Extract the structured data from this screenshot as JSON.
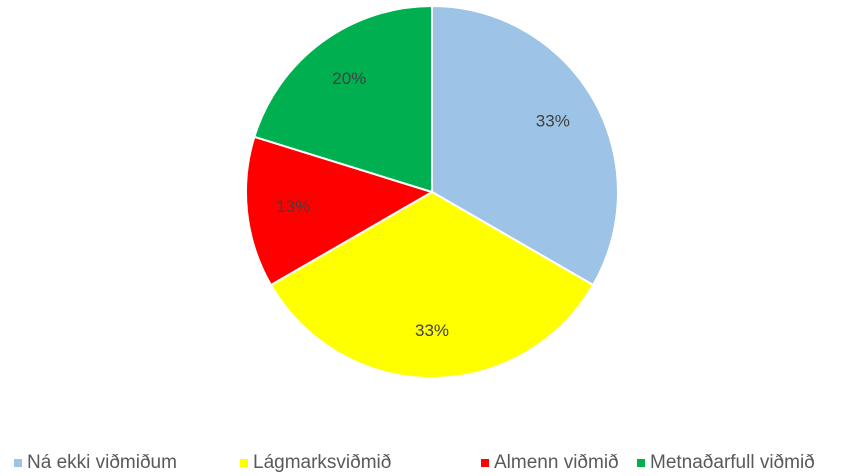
{
  "chart_data": {
    "type": "pie",
    "categories": [
      "Ná ekki viðmiðum",
      "Lágmarksviðmið",
      "Almenn viðmið",
      "Metnaðarfull viðmið"
    ],
    "values": [
      33,
      33,
      13,
      20
    ],
    "value_labels": [
      "33%",
      "33%",
      "13%",
      "20%"
    ],
    "colors": [
      "#9dc3e6",
      "#ffff00",
      "#ff0000",
      "#00b050"
    ],
    "legend": "bottom"
  }
}
